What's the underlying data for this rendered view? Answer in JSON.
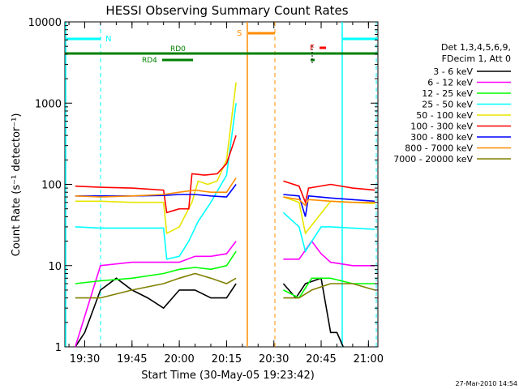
{
  "chart_data": {
    "type": "line",
    "title": "HESSI Observing Summary Count Rates",
    "xlabel": "Start Time (30-May-05 19:23:42)",
    "ylabel": "Count Rate (s⁻¹ detector⁻¹)",
    "y_scale": "log",
    "ylim": [
      1,
      10000
    ],
    "xlim": [
      "19:23:42",
      "21:03:00"
    ],
    "x_ticks": [
      "19:30",
      "19:45",
      "20:00",
      "20:15",
      "20:30",
      "20:45",
      "21:00"
    ],
    "y_ticks": [
      "1",
      "10",
      "100",
      "1000",
      "10000"
    ],
    "footer_date": "27-Mar-2010 14:54",
    "legend": {
      "placement": "right",
      "header": [
        "Det 1,3,4,5,6,9,",
        "FDecim 1, Att 0"
      ],
      "entries": [
        {
          "label": "3 - 6 keV",
          "color": "#000000"
        },
        {
          "label": "6 - 12 keV",
          "color": "#ff00ff"
        },
        {
          "label": "12 - 25 keV",
          "color": "#00ff00"
        },
        {
          "label": "25 - 50 keV",
          "color": "#00ffff"
        },
        {
          "label": "50 - 100 keV",
          "color": "#e6e600"
        },
        {
          "label": "100 - 300 keV",
          "color": "#ff0000"
        },
        {
          "label": "300 - 800 keV",
          "color": "#0000ff"
        },
        {
          "label": "800 - 7000 keV",
          "color": "#ff8c00"
        },
        {
          "label": "7000 - 20000 keV",
          "color": "#808000"
        }
      ]
    },
    "flags": [
      {
        "label": "N",
        "color": "#00ffff"
      },
      {
        "label": "RD0",
        "color": "#008000"
      },
      {
        "label": "RD4",
        "color": "#008000"
      },
      {
        "label": "S",
        "color": "#ff8c00"
      },
      {
        "label": "F",
        "color": "#ff0000"
      }
    ],
    "series": [
      {
        "name": "3 - 6 keV",
        "color": "#000000",
        "x": [
          "19:27",
          "19:30",
          "19:35",
          "19:40",
          "19:45",
          "19:50",
          "19:55",
          "20:00",
          "20:05",
          "20:10",
          "20:15",
          "20:18",
          "20:33",
          "20:37",
          "20:40",
          "20:45",
          "20:48",
          "20:50",
          "20:52"
        ],
        "y": [
          1,
          1.5,
          5,
          7,
          5,
          4,
          3,
          5,
          5,
          4,
          4,
          6,
          6,
          4,
          6,
          7,
          1.5,
          1.5,
          1
        ]
      },
      {
        "name": "6 - 12 keV",
        "color": "#ff00ff",
        "x": [
          "19:27",
          "19:35",
          "19:45",
          "19:55",
          "20:00",
          "20:05",
          "20:10",
          "20:15",
          "20:18",
          "20:33",
          "20:38",
          "20:42",
          "20:45",
          "20:48",
          "20:55",
          "21:02"
        ],
        "y": [
          1,
          10,
          11,
          11,
          11,
          13,
          13,
          14,
          20,
          12,
          12,
          20,
          14,
          11,
          10,
          10
        ]
      },
      {
        "name": "12 - 25 keV",
        "color": "#00ff00",
        "x": [
          "19:27",
          "19:35",
          "19:45",
          "19:55",
          "20:00",
          "20:05",
          "20:10",
          "20:15",
          "20:18",
          "20:33",
          "20:38",
          "20:42",
          "20:48",
          "20:55",
          "21:02"
        ],
        "y": [
          6,
          6.5,
          7,
          8,
          9,
          9.5,
          9,
          10,
          15,
          5,
          4,
          7,
          7,
          6,
          6
        ]
      },
      {
        "name": "25 - 50 keV",
        "color": "#00ffff",
        "x": [
          "19:27",
          "19:35",
          "19:45",
          "19:55",
          "19:56",
          "20:00",
          "20:03",
          "20:06",
          "20:10",
          "20:15",
          "20:18",
          "20:33",
          "20:38",
          "20:40",
          "20:45",
          "20:48",
          "20:55",
          "21:02"
        ],
        "y": [
          30,
          29,
          29,
          29,
          12,
          13,
          20,
          35,
          60,
          130,
          1000,
          45,
          30,
          15,
          30,
          30,
          29,
          28
        ]
      },
      {
        "name": "50 - 100 keV",
        "color": "#e6e600",
        "x": [
          "19:27",
          "19:35",
          "19:45",
          "19:55",
          "19:56",
          "20:00",
          "20:04",
          "20:06",
          "20:09",
          "20:12",
          "20:15",
          "20:18",
          "20:33",
          "20:38",
          "20:40",
          "20:48",
          "20:55",
          "21:02"
        ],
        "y": [
          62,
          62,
          60,
          60,
          25,
          30,
          60,
          110,
          100,
          110,
          200,
          1800,
          70,
          60,
          25,
          62,
          60,
          58
        ]
      },
      {
        "name": "100 - 300 keV",
        "color": "#ff0000",
        "x": [
          "19:27",
          "19:35",
          "19:45",
          "19:55",
          "19:56",
          "20:00",
          "20:03",
          "20:04",
          "20:08",
          "20:12",
          "20:15",
          "20:18",
          "20:33",
          "20:38",
          "20:40",
          "20:41",
          "20:48",
          "20:55",
          "21:02"
        ],
        "y": [
          95,
          92,
          90,
          85,
          45,
          50,
          50,
          135,
          130,
          135,
          180,
          400,
          110,
          95,
          60,
          90,
          100,
          90,
          85
        ]
      },
      {
        "name": "300 - 800 keV",
        "color": "#0000ff",
        "x": [
          "19:27",
          "19:35",
          "19:45",
          "19:55",
          "20:00",
          "20:05",
          "20:10",
          "20:15",
          "20:18",
          "20:33",
          "20:38",
          "20:40",
          "20:41",
          "20:48",
          "20:55",
          "21:02"
        ],
        "y": [
          72,
          72,
          72,
          73,
          75,
          75,
          72,
          70,
          100,
          75,
          72,
          40,
          72,
          68,
          65,
          62
        ]
      },
      {
        "name": "800 - 7000 keV",
        "color": "#ff8c00",
        "x": [
          "19:27",
          "19:35",
          "19:45",
          "19:55",
          "20:00",
          "20:05",
          "20:10",
          "20:15",
          "20:18",
          "20:33",
          "20:38",
          "20:40",
          "20:41",
          "20:48",
          "20:55",
          "21:02"
        ],
        "y": [
          72,
          70,
          72,
          75,
          80,
          85,
          80,
          80,
          120,
          70,
          65,
          55,
          65,
          62,
          60,
          60
        ]
      },
      {
        "name": "7000 - 20000 keV",
        "color": "#808000",
        "x": [
          "19:27",
          "19:35",
          "19:45",
          "19:55",
          "20:00",
          "20:05",
          "20:10",
          "20:15",
          "20:18",
          "20:33",
          "20:38",
          "20:42",
          "20:48",
          "20:55",
          "21:02"
        ],
        "y": [
          4,
          4,
          5,
          6,
          7,
          8,
          7,
          6,
          7,
          4,
          4,
          5,
          6,
          6,
          5
        ]
      }
    ]
  }
}
